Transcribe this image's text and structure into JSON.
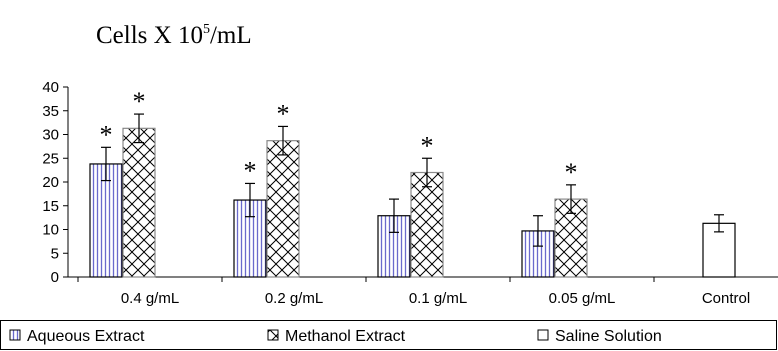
{
  "chart_data": {
    "type": "bar",
    "title_parts": {
      "prefix": "Cells X 10",
      "superscript": "5",
      "suffix": "/mL"
    },
    "xlabel": "",
    "ylabel": "",
    "ylim": [
      0,
      40
    ],
    "yticks": [
      0,
      5,
      10,
      15,
      20,
      25,
      30,
      35,
      40
    ],
    "categories": [
      "0.4 g/mL",
      "0.2 g/mL",
      "0.1 g/mL",
      "0.05 g/mL",
      "Control"
    ],
    "series": [
      {
        "name": "Aqueous Extract",
        "pattern": "vertical-lines",
        "color": "#6a6acc",
        "values": [
          23.8,
          16.2,
          12.9,
          9.7,
          null
        ],
        "errors": [
          3.5,
          3.5,
          3.5,
          3.2,
          null
        ],
        "significant": [
          true,
          true,
          false,
          false,
          false
        ]
      },
      {
        "name": "Methanol Extract",
        "pattern": "crosshatch",
        "color": "#000000",
        "values": [
          31.3,
          28.7,
          22.0,
          16.4,
          null
        ],
        "errors": [
          3.0,
          3.0,
          3.0,
          3.0,
          null
        ],
        "significant": [
          true,
          true,
          true,
          true,
          false
        ]
      },
      {
        "name": "Saline Solution",
        "pattern": "none",
        "color": "#000000",
        "values": [
          null,
          null,
          null,
          null,
          11.3
        ],
        "errors": [
          null,
          null,
          null,
          null,
          1.8
        ],
        "significant": [
          false,
          false,
          false,
          false,
          false
        ]
      }
    ],
    "significance_marker": "*",
    "legend_position": "bottom",
    "grid": false
  }
}
